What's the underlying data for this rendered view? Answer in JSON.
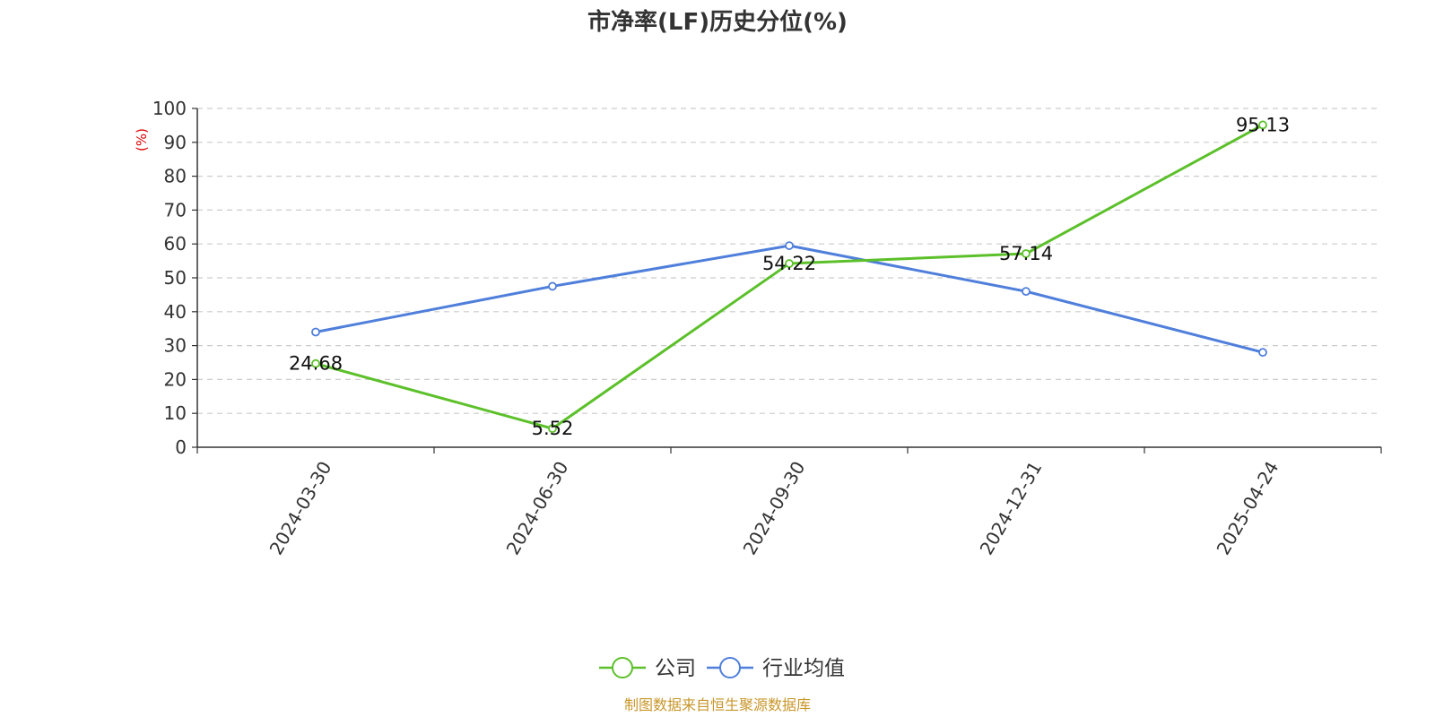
{
  "chart_data": {
    "type": "line",
    "title": "市净率(LF)历史分位(%)",
    "ylabel": "(%)",
    "xlabel": "",
    "categories": [
      "2024-03-30",
      "2024-06-30",
      "2024-09-30",
      "2024-12-31",
      "2025-04-24"
    ],
    "ylim": [
      0,
      100
    ],
    "yticks": [
      0,
      10,
      20,
      30,
      40,
      50,
      60,
      70,
      80,
      90,
      100
    ],
    "grid": true,
    "legend_position": "bottom",
    "series": [
      {
        "name": "公司",
        "color": "#5cc02a",
        "values": [
          24.68,
          5.52,
          54.22,
          57.14,
          95.13
        ],
        "show_labels": true
      },
      {
        "name": "行业均值",
        "color": "#4f7fdb",
        "values": [
          34.0,
          47.5,
          59.5,
          46.0,
          28.0
        ],
        "show_labels": false
      }
    ],
    "source": "制图数据来自恒生聚源数据库"
  }
}
